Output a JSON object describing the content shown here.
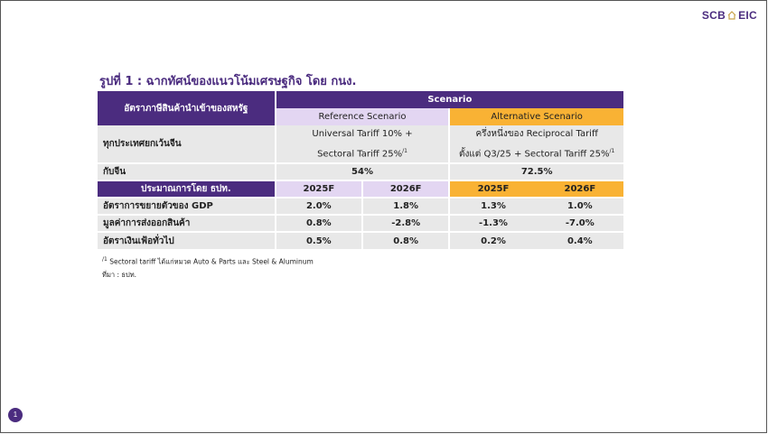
{
  "logo": {
    "left": "SCB",
    "right": "EIC"
  },
  "title": "รูปที่ 1 : ฉากทัศน์ของแนวโน้มเศรษฐกิจ โดย กนง.",
  "table": {
    "header_left": "อัตราภาษีสินค้านำเข้าของสหรัฐ",
    "scenario_label": "Scenario",
    "ref_scenario": "Reference Scenario",
    "alt_scenario": "Alternative Scenario",
    "row_excl_china": {
      "label": "ทุกประเทศยกเว้นจีน",
      "ref_line1": "Universal Tariff 10% +",
      "ref_line2": "Sectoral Tariff 25%",
      "ref_sup": "/1",
      "alt_line1": "ครึ่งหนึ่งของ Reciprocal Tariff",
      "alt_line2": "ตั้งแต่ Q3/25 + Sectoral Tariff 25%",
      "alt_sup": "/1"
    },
    "row_china": {
      "label": "กับจีน",
      "ref": "54%",
      "alt": "72.5%"
    },
    "forecast_header": "ประมาณการโดย ธปท.",
    "years": [
      "2025F",
      "2026F",
      "2025F",
      "2026F"
    ],
    "rows": [
      {
        "label": "อัตราการขยายตัวของ GDP",
        "values": [
          "2.0%",
          "1.8%",
          "1.3%",
          "1.0%"
        ]
      },
      {
        "label": "มูลค่าการส่งออกสินค้า",
        "values": [
          "0.8%",
          "-2.8%",
          "-1.3%",
          "-7.0%"
        ]
      },
      {
        "label": "อัตราเงินเฟ้อทั่วไป",
        "values": [
          "0.5%",
          "0.8%",
          "0.2%",
          "0.4%"
        ]
      }
    ]
  },
  "notes": {
    "footnote_mark": "/1",
    "footnote": "Sectoral tariff ได้แก่หมวด Auto & Parts และ Steel & Aluminum",
    "source": "ที่มา : ธปท."
  },
  "page_number": "1",
  "colors": {
    "purple": "#4b2c7f",
    "lavender": "#e3d6f2",
    "orange": "#f9b234",
    "grey": "#e8e8e8"
  }
}
